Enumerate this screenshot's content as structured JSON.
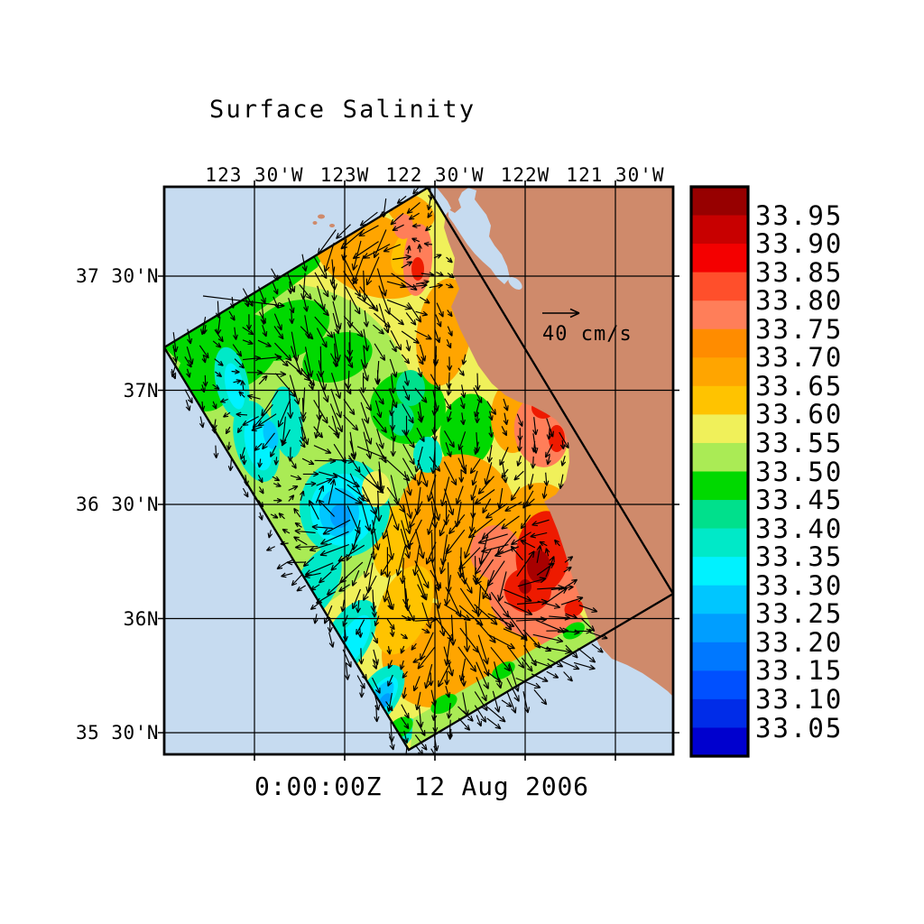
{
  "plot": {
    "title": "Surface Salinity",
    "timestamp": "0:00:00Z  12 Aug 2006",
    "vector_legend_label": "40 cm/s"
  },
  "axes": {
    "top_labels": [
      "123 30'W",
      "123W",
      "122 30'W",
      "122W",
      "121 30'W"
    ],
    "left_labels": [
      "37 30'N",
      "37N",
      "36 30'N",
      "36N",
      "35 30'N"
    ]
  },
  "colorbar": {
    "tick_labels": [
      "33.95",
      "33.90",
      "33.85",
      "33.80",
      "33.75",
      "33.70",
      "33.65",
      "33.60",
      "33.55",
      "33.50",
      "33.45",
      "33.40",
      "33.35",
      "33.30",
      "33.25",
      "33.20",
      "33.15",
      "33.10",
      "33.05"
    ],
    "band_colors_top_to_bottom": [
      "#970000",
      "#C80000",
      "#F40000",
      "#FF4F2B",
      "#FF7E59",
      "#FF8C00",
      "#FFA500",
      "#FFC300",
      "#F0F05A",
      "#AAEB55",
      "#00D900",
      "#00E08C",
      "#00E9C8",
      "#00F2FF",
      "#00C6FF",
      "#009EFF",
      "#0078FF",
      "#0050FF",
      "#002CE8",
      "#0000CE"
    ]
  },
  "map_colors": {
    "ocean": "#C6DBF0",
    "land": "#CF8A6B"
  },
  "chart_data": {
    "type": "heatmap",
    "title": "Surface Salinity",
    "datetime_label": "0:00:00Z  12 Aug 2006",
    "x_axis": {
      "ticks": [
        "123 30'W",
        "123W",
        "122 30'W",
        "122W",
        "121 30'W"
      ],
      "approx_range_deg_west": [
        124.0,
        121.2
      ]
    },
    "y_axis": {
      "ticks": [
        "37 30'N",
        "37N",
        "36 30'N",
        "36N",
        "35 30'N"
      ],
      "approx_range_deg_north": [
        35.4,
        37.9
      ]
    },
    "color_scale": {
      "levels": [
        33.05,
        33.1,
        33.15,
        33.2,
        33.25,
        33.3,
        33.35,
        33.4,
        33.45,
        33.5,
        33.55,
        33.6,
        33.65,
        33.7,
        33.75,
        33.8,
        33.85,
        33.9,
        33.95
      ],
      "colors_top_to_bottom": [
        "#970000",
        "#C80000",
        "#F40000",
        "#FF4F2B",
        "#FF7E59",
        "#FF8C00",
        "#FFA500",
        "#FFC300",
        "#F0F05A",
        "#AAEB55",
        "#00D900",
        "#00E08C",
        "#00E9C8",
        "#00F2FF",
        "#00C6FF",
        "#009EFF",
        "#0078FF",
        "#0050FF",
        "#002CE8",
        "#0000CE"
      ]
    },
    "vector_overlay": {
      "reference_arrow_label": "40 cm/s",
      "reference_speed_cm_s": 40
    },
    "scene": "Rotated model domain of coastal ocean salinity with current vectors; land mass with two bays on the east side",
    "approx_field_values": [
      {
        "area": "northwest and west-central domain",
        "salinity": "33.45-33.60"
      },
      {
        "area": "eddy cores west / southwest (cyan-blue patches)",
        "salinity": "33.25-33.40"
      },
      {
        "area": "central and southern band (yellow-orange)",
        "salinity": "33.60-33.75"
      },
      {
        "area": "nearshore east and inner bay (red patches)",
        "salinity": "33.80-33.95"
      },
      {
        "area": "southeast edge strip",
        "salinity": "33.55-33.65"
      }
    ]
  }
}
